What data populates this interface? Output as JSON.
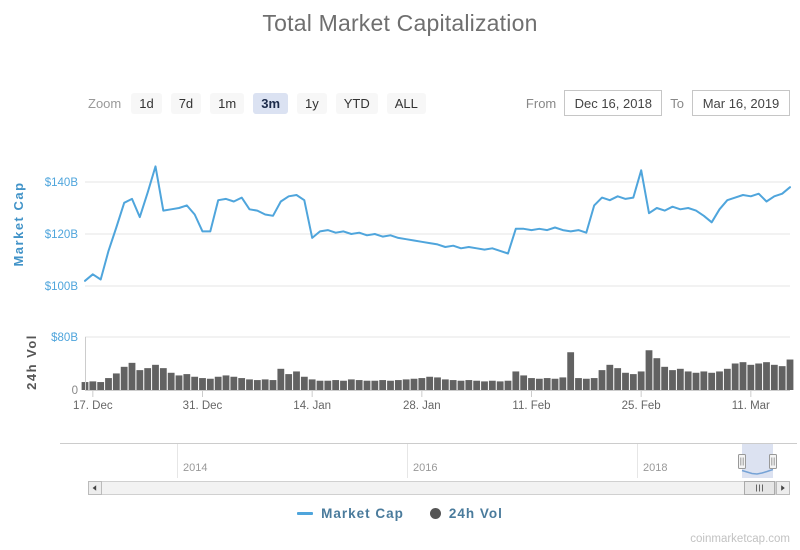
{
  "title": "Total Market Capitalization",
  "toolbar": {
    "zoom_label": "Zoom",
    "zoom_buttons": [
      "1d",
      "7d",
      "1m",
      "3m",
      "1y",
      "YTD",
      "ALL"
    ],
    "selected_zoom": "3m",
    "from_label": "From",
    "from_value": "Dec 16, 2018",
    "to_label": "To",
    "to_value": "Mar 16, 2019"
  },
  "axes": {
    "market_cap_title": "Market Cap",
    "volume_title": "24h Vol",
    "market_cap_ticks": [
      {
        "label": "$140B",
        "value": 140
      },
      {
        "label": "$120B",
        "value": 120
      },
      {
        "label": "$100B",
        "value": 100
      }
    ],
    "volume_ticks": [
      {
        "label": "$80B",
        "value": 80,
        "color": "#4fa5dc"
      },
      {
        "label": "0",
        "value": 0,
        "color": "#888888"
      }
    ],
    "x_ticks": [
      {
        "label": "17. Dec",
        "day": 1
      },
      {
        "label": "31. Dec",
        "day": 15
      },
      {
        "label": "14. Jan",
        "day": 29
      },
      {
        "label": "28. Jan",
        "day": 43
      },
      {
        "label": "11. Feb",
        "day": 57
      },
      {
        "label": "25. Feb",
        "day": 71
      },
      {
        "label": "11. Mar",
        "day": 85
      }
    ]
  },
  "navigator": {
    "year_labels": [
      {
        "label": "2014",
        "x": 177
      },
      {
        "label": "2016",
        "x": 407
      },
      {
        "label": "2018",
        "x": 637
      }
    ]
  },
  "legend": [
    {
      "label": "Market Cap",
      "marker": "line",
      "color": "#4fa5dc"
    },
    {
      "label": "24h Vol",
      "marker": "circle",
      "color": "#555555"
    }
  ],
  "watermark": "coinmarketcap.com",
  "chart_data": {
    "type": "line",
    "title": "Total Market Capitalization",
    "y_unit": "USD billions",
    "grid": true,
    "legend_position": "bottom",
    "x_dates": [
      "Dec 16",
      "Dec 17",
      "Dec 18",
      "Dec 19",
      "Dec 20",
      "Dec 21",
      "Dec 22",
      "Dec 23",
      "Dec 24",
      "Dec 25",
      "Dec 26",
      "Dec 27",
      "Dec 28",
      "Dec 29",
      "Dec 30",
      "Dec 31",
      "Jan 1",
      "Jan 2",
      "Jan 3",
      "Jan 4",
      "Jan 5",
      "Jan 6",
      "Jan 7",
      "Jan 8",
      "Jan 9",
      "Jan 10",
      "Jan 11",
      "Jan 12",
      "Jan 13",
      "Jan 14",
      "Jan 15",
      "Jan 16",
      "Jan 17",
      "Jan 18",
      "Jan 19",
      "Jan 20",
      "Jan 21",
      "Jan 22",
      "Jan 23",
      "Jan 24",
      "Jan 25",
      "Jan 26",
      "Jan 27",
      "Jan 28",
      "Jan 29",
      "Jan 30",
      "Jan 31",
      "Feb 1",
      "Feb 2",
      "Feb 3",
      "Feb 4",
      "Feb 5",
      "Feb 6",
      "Feb 7",
      "Feb 8",
      "Feb 9",
      "Feb 10",
      "Feb 11",
      "Feb 12",
      "Feb 13",
      "Feb 14",
      "Feb 15",
      "Feb 16",
      "Feb 17",
      "Feb 18",
      "Feb 19",
      "Feb 20",
      "Feb 21",
      "Feb 22",
      "Feb 23",
      "Feb 24",
      "Feb 25",
      "Feb 26",
      "Feb 27",
      "Feb 28",
      "Mar 1",
      "Mar 2",
      "Mar 3",
      "Mar 4",
      "Mar 5",
      "Mar 6",
      "Mar 7",
      "Mar 8",
      "Mar 9",
      "Mar 10",
      "Mar 11",
      "Mar 12",
      "Mar 13",
      "Mar 14",
      "Mar 15",
      "Mar 16"
    ],
    "series": [
      {
        "name": "Market Cap",
        "type": "line",
        "color": "#4fa5dc",
        "ylim": [
          95,
          150
        ],
        "values": [
          102,
          104.5,
          102.5,
          113.5,
          122.5,
          132,
          133.5,
          126.5,
          136,
          146,
          129,
          129.5,
          130,
          131,
          127.5,
          121,
          121,
          133,
          133.5,
          132.5,
          134,
          129.5,
          129,
          127.5,
          127,
          132.5,
          134.5,
          135,
          133,
          118.5,
          121,
          121.5,
          120.5,
          121,
          120,
          120.5,
          119.5,
          120,
          119,
          119.5,
          118.5,
          118,
          117.5,
          117,
          116.5,
          116,
          115,
          115.5,
          114.5,
          115,
          114.5,
          114,
          114.5,
          113.5,
          112.5,
          122,
          122,
          121.5,
          122,
          121.5,
          122.5,
          121.5,
          121,
          121.5,
          120.5,
          131,
          134,
          133,
          134.5,
          133.5,
          134,
          144.5,
          128,
          130,
          129,
          130.5,
          129.5,
          130,
          129,
          127,
          124.5,
          129.5,
          133,
          134,
          135,
          134.5,
          135.5,
          132.5,
          134.5,
          135.5,
          138
        ]
      },
      {
        "name": "24h Vol",
        "type": "column",
        "color": "#626262",
        "ylim": [
          0,
          85
        ],
        "values": [
          12,
          13,
          12,
          18,
          25,
          35,
          41,
          30,
          33,
          38,
          33,
          26,
          22,
          24,
          20,
          18,
          17,
          20,
          22,
          20,
          18,
          16,
          15,
          16,
          15,
          32,
          24,
          28,
          20,
          16,
          14,
          14,
          15,
          14,
          16,
          15,
          14,
          14,
          15,
          14,
          15,
          16,
          17,
          18,
          20,
          19,
          16,
          15,
          14,
          15,
          14,
          13,
          14,
          13,
          14,
          28,
          22,
          18,
          17,
          18,
          17,
          19,
          57,
          18,
          17,
          18,
          30,
          38,
          33,
          26,
          24,
          28,
          60,
          48,
          35,
          30,
          32,
          28,
          26,
          28,
          26,
          28,
          32,
          40,
          42,
          38,
          40,
          42,
          38,
          36,
          46
        ]
      }
    ]
  }
}
